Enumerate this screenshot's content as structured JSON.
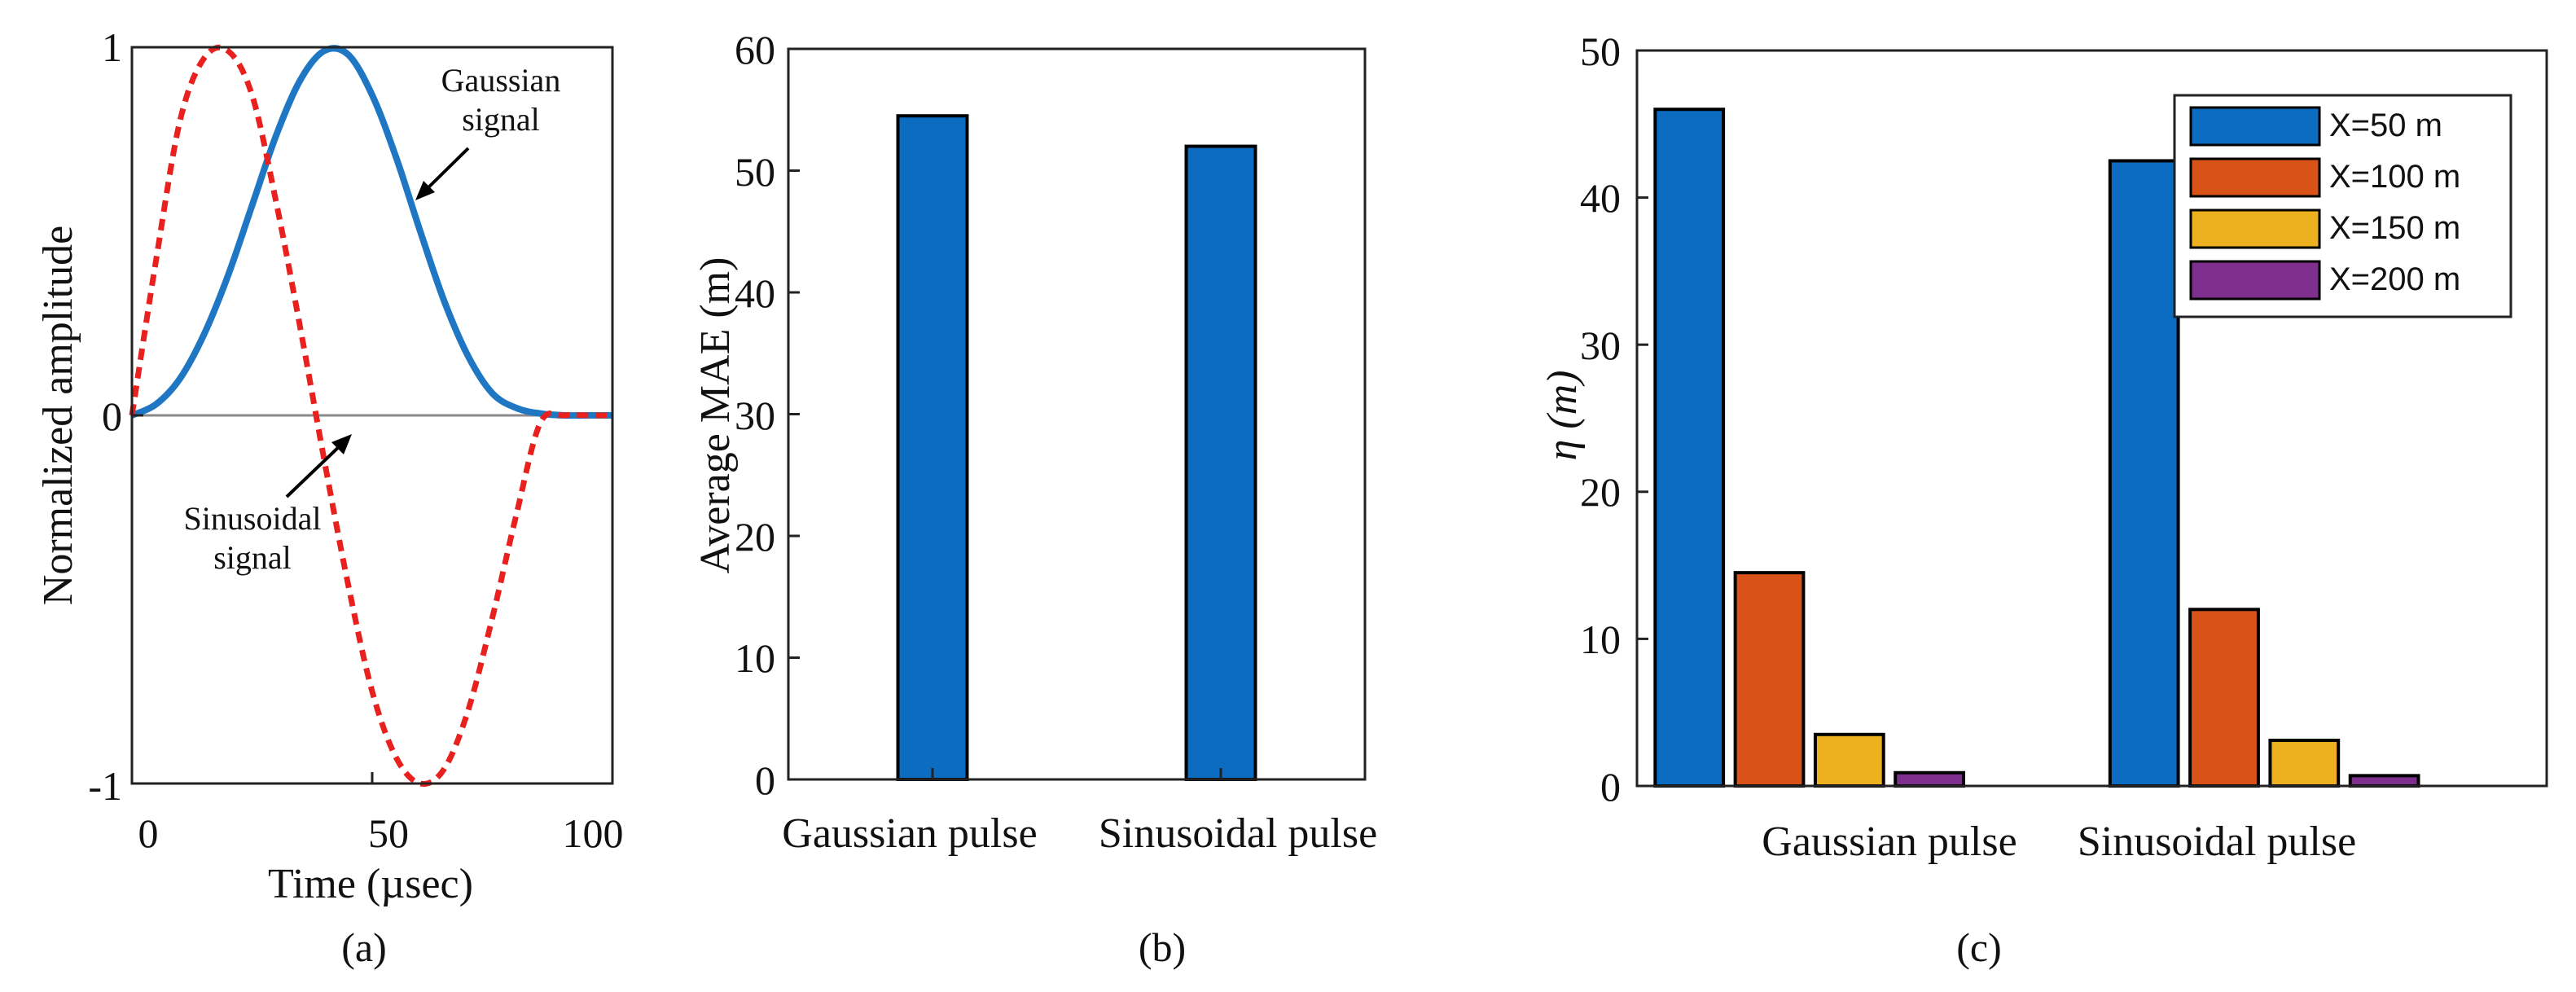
{
  "chart_data": [
    {
      "type": "line",
      "panel": "(a)",
      "xlabel": "Time (µsec)",
      "ylabel": "Normalized amplitude",
      "xlim": [
        0,
        100
      ],
      "ylim": [
        -1,
        1
      ],
      "xticks": [
        "0",
        "50",
        "100"
      ],
      "yticks": [
        "-1",
        "0",
        "1"
      ],
      "series": [
        {
          "name": "Gaussian signal",
          "color": "#1f77c4",
          "style": "solid",
          "x": [
            0,
            5,
            10,
            15,
            20,
            25,
            30,
            35,
            40,
            45,
            50,
            55,
            60,
            65,
            70,
            75,
            80,
            85,
            90,
            95,
            100
          ],
          "y": [
            0,
            0.03,
            0.1,
            0.22,
            0.38,
            0.57,
            0.76,
            0.91,
            0.99,
            0.98,
            0.87,
            0.7,
            0.5,
            0.31,
            0.16,
            0.06,
            0.02,
            0.005,
            0,
            0,
            0
          ]
        },
        {
          "name": "Sinusoidal signal",
          "color": "#e8201e",
          "style": "dashed",
          "x": [
            0,
            5,
            10,
            15,
            20,
            25,
            30,
            35,
            40,
            45,
            50,
            55,
            60,
            65,
            70,
            75,
            80,
            85,
            90,
            95,
            100
          ],
          "y": [
            0,
            0.42,
            0.8,
            0.97,
            0.99,
            0.87,
            0.58,
            0.24,
            -0.12,
            -0.46,
            -0.75,
            -0.93,
            -1.0,
            -0.96,
            -0.8,
            -0.55,
            -0.27,
            -0.02,
            0.0,
            0.0,
            0.0
          ]
        }
      ],
      "annotations": [
        "Gaussian",
        "signal",
        "Sinusoidal",
        "signal"
      ]
    },
    {
      "type": "bar",
      "panel": "(b)",
      "categories": [
        "Gaussian pulse",
        "Sinusoidal pulse"
      ],
      "values": [
        54.5,
        52
      ],
      "ylabel": "Average MAE (m)",
      "ylim": [
        0,
        60
      ],
      "yticks": [
        "0",
        "10",
        "20",
        "30",
        "40",
        "50",
        "60"
      ],
      "color": "#0b6cc1"
    },
    {
      "type": "bar",
      "panel": "(c)",
      "categories": [
        "Gaussian pulse",
        "Sinusoidal pulse"
      ],
      "ylabel": "η (m)",
      "ylim": [
        0,
        50
      ],
      "yticks": [
        "0",
        "10",
        "20",
        "30",
        "40",
        "50"
      ],
      "legend_position": "top-right",
      "series": [
        {
          "name": "X=50 m",
          "color": "#0b6cc1",
          "values": [
            46,
            42.5
          ]
        },
        {
          "name": "X=100 m",
          "color": "#d95319",
          "values": [
            14.5,
            12
          ]
        },
        {
          "name": "X=150 m",
          "color": "#edb120",
          "values": [
            3.5,
            3.1
          ]
        },
        {
          "name": "X=200 m",
          "color": "#7e2f8e",
          "values": [
            0.9,
            0.7
          ]
        }
      ]
    }
  ],
  "captions": {
    "a": "(a)",
    "b": "(b)",
    "c": "(c)"
  }
}
